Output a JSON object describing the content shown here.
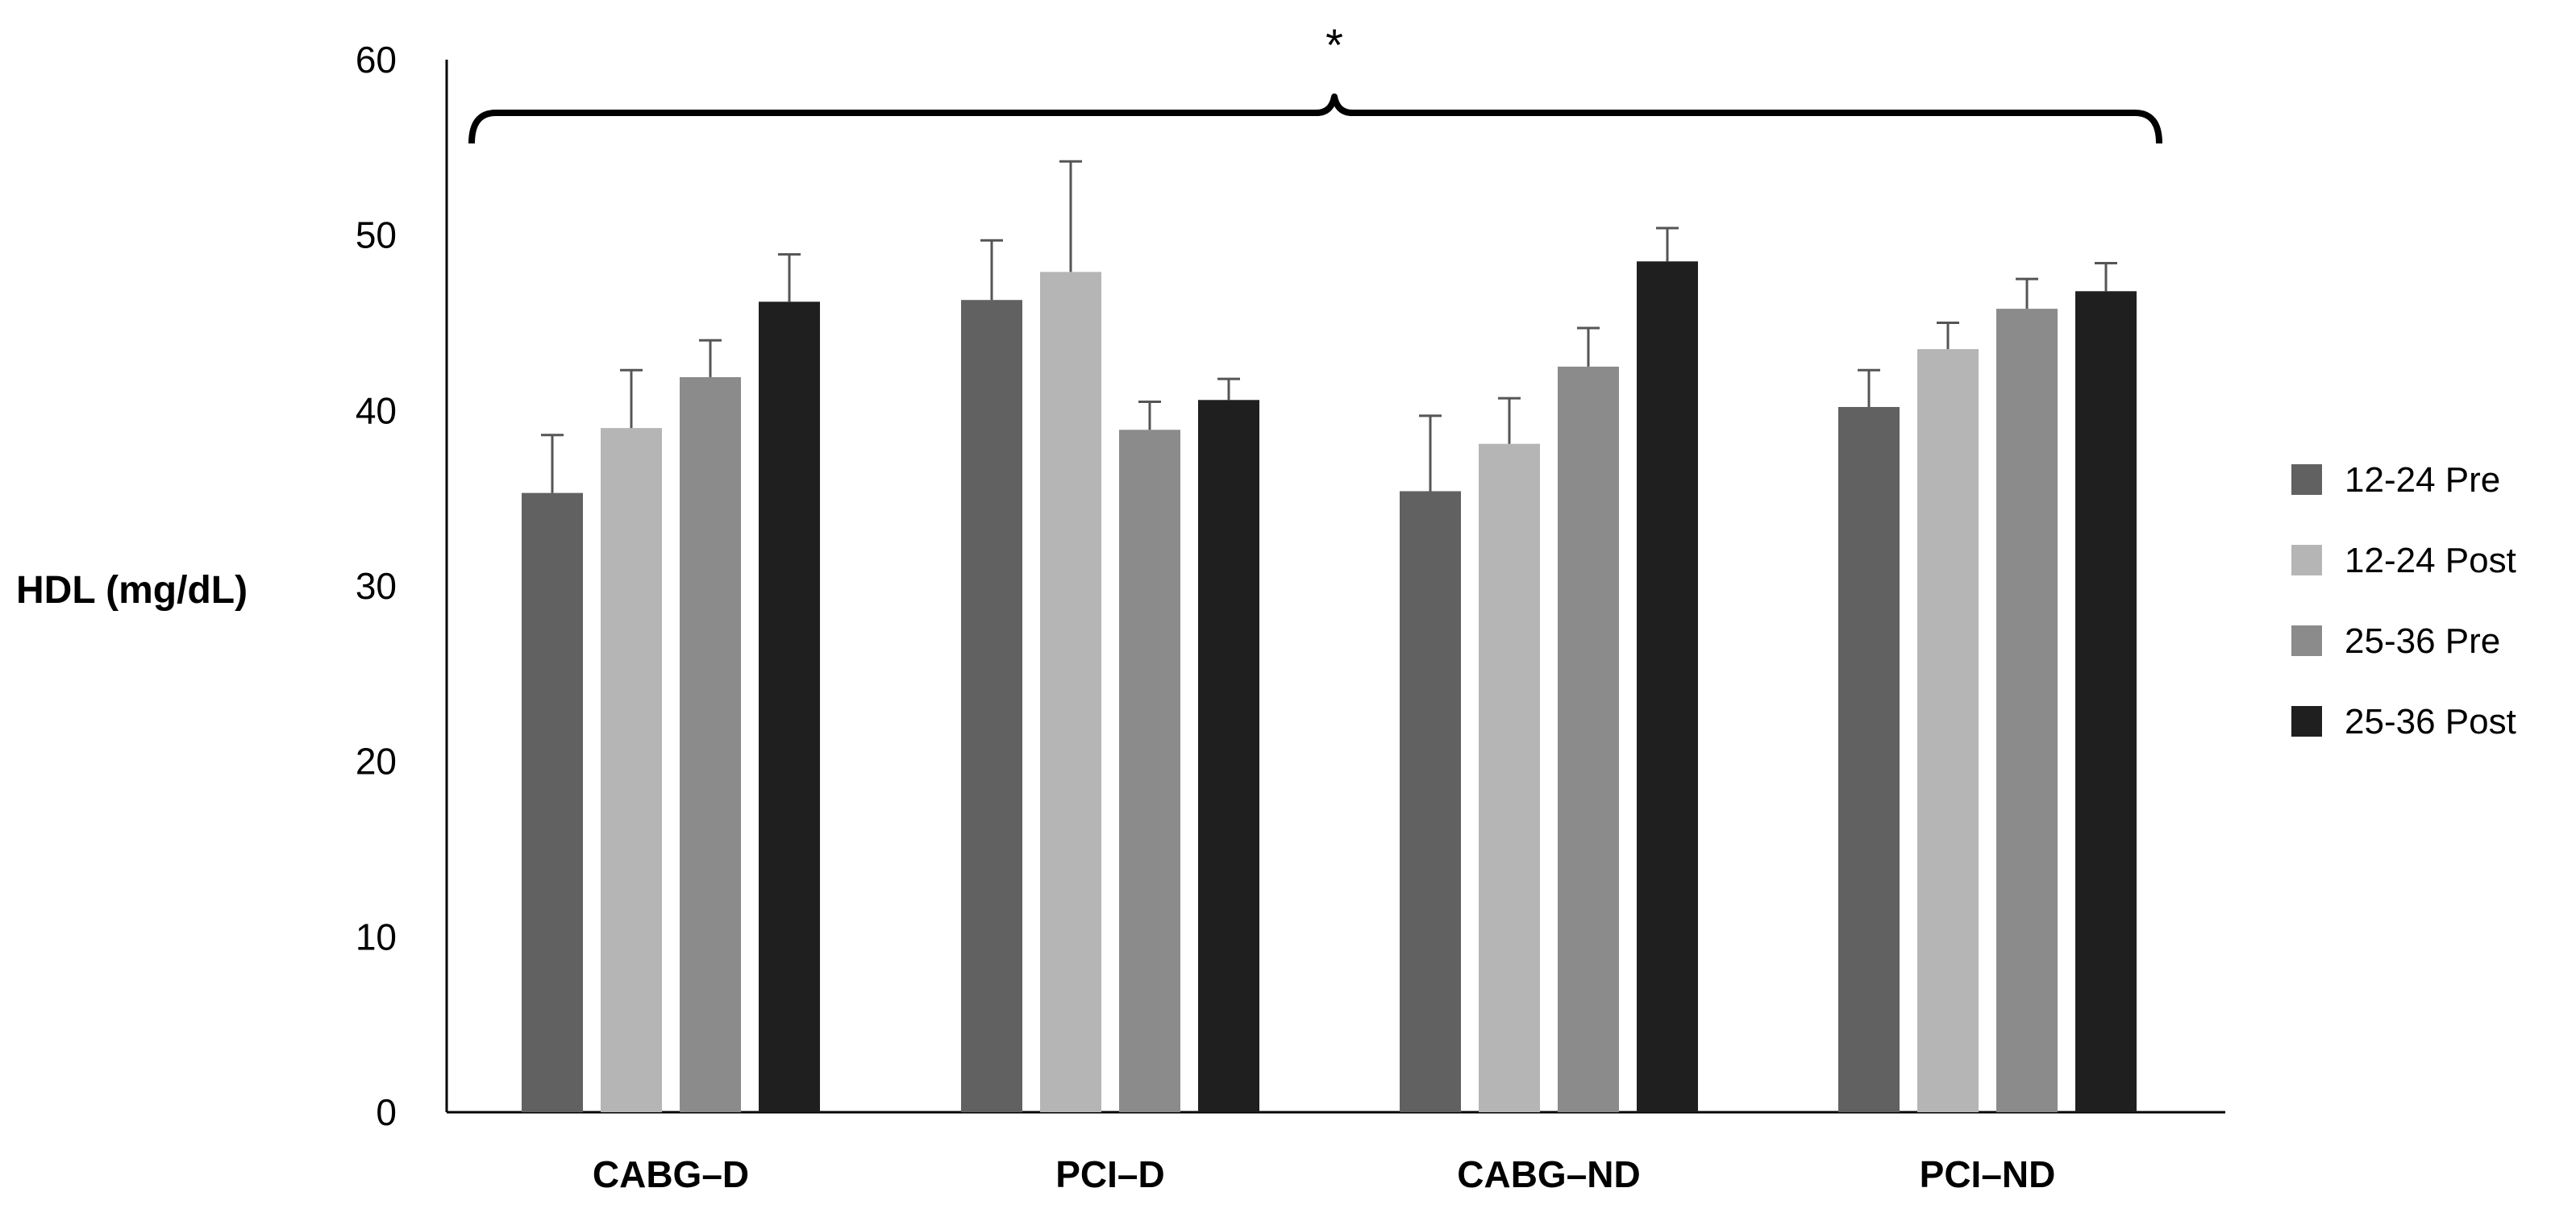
{
  "chart_data": {
    "type": "bar",
    "title": "",
    "xlabel": "",
    "ylabel": "HDL (mg/dL)",
    "ylim": [
      0,
      60
    ],
    "yticks": [
      0,
      10,
      20,
      30,
      40,
      50,
      60
    ],
    "categories": [
      "CABG–D",
      "PCI–D",
      "CABG–ND",
      "PCI–ND"
    ],
    "series": [
      {
        "name": "12-24 Pre",
        "color": "#616161",
        "values": [
          35.3,
          46.3,
          35.4,
          40.2
        ],
        "errors": [
          3.3,
          3.4,
          4.3,
          2.1
        ]
      },
      {
        "name": "12-24 Post",
        "color": "#b5b5b5",
        "values": [
          39.0,
          47.9,
          38.1,
          43.5
        ],
        "errors": [
          3.3,
          6.3,
          2.6,
          1.5
        ]
      },
      {
        "name": "25-36 Pre",
        "color": "#8b8b8b",
        "values": [
          41.9,
          38.9,
          42.5,
          45.8
        ],
        "errors": [
          2.1,
          1.6,
          2.2,
          1.7
        ]
      },
      {
        "name": "25-36 Post",
        "color": "#1f1f1f",
        "values": [
          46.2,
          40.6,
          48.5,
          46.8
        ],
        "errors": [
          2.7,
          1.2,
          1.9,
          1.6
        ]
      }
    ],
    "legend_position": "right",
    "grid": false,
    "annotations": [
      {
        "text": "*",
        "spans": "all categories"
      }
    ]
  }
}
